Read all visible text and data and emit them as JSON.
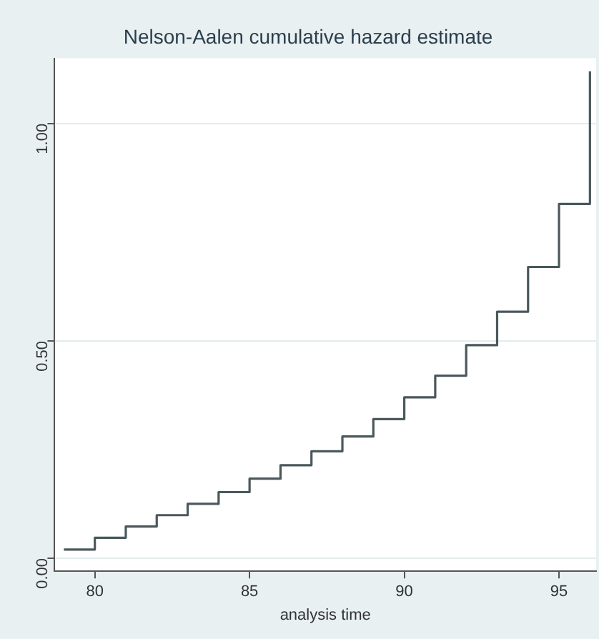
{
  "chart_data": {
    "type": "step",
    "title": "Nelson-Aalen cumulative hazard estimate",
    "xlabel": "analysis time",
    "x": [
      79,
      80,
      81,
      82,
      83,
      84,
      85,
      86,
      87,
      88,
      89,
      90,
      91,
      92,
      93,
      94,
      95,
      96
    ],
    "series": [
      {
        "color": "#4a585c",
        "values": [
          0.02,
          0.047,
          0.073,
          0.099,
          0.125,
          0.152,
          0.183,
          0.214,
          0.246,
          0.28,
          0.32,
          0.37,
          0.42,
          0.49,
          0.567,
          0.67,
          0.815,
          1.12
        ]
      }
    ],
    "xlim": [
      78.7,
      96.2
    ],
    "xticks": [
      80,
      85,
      90,
      95
    ],
    "ylim": [
      -0.03,
      1.15
    ],
    "yticks": [
      {
        "value": 0,
        "label": "0.00"
      },
      {
        "value": 0.5,
        "label": "0.50"
      },
      {
        "value": 1,
        "label": "1.00"
      }
    ],
    "grid": "y",
    "legend": false,
    "marker": "none",
    "line_style": "solid"
  }
}
